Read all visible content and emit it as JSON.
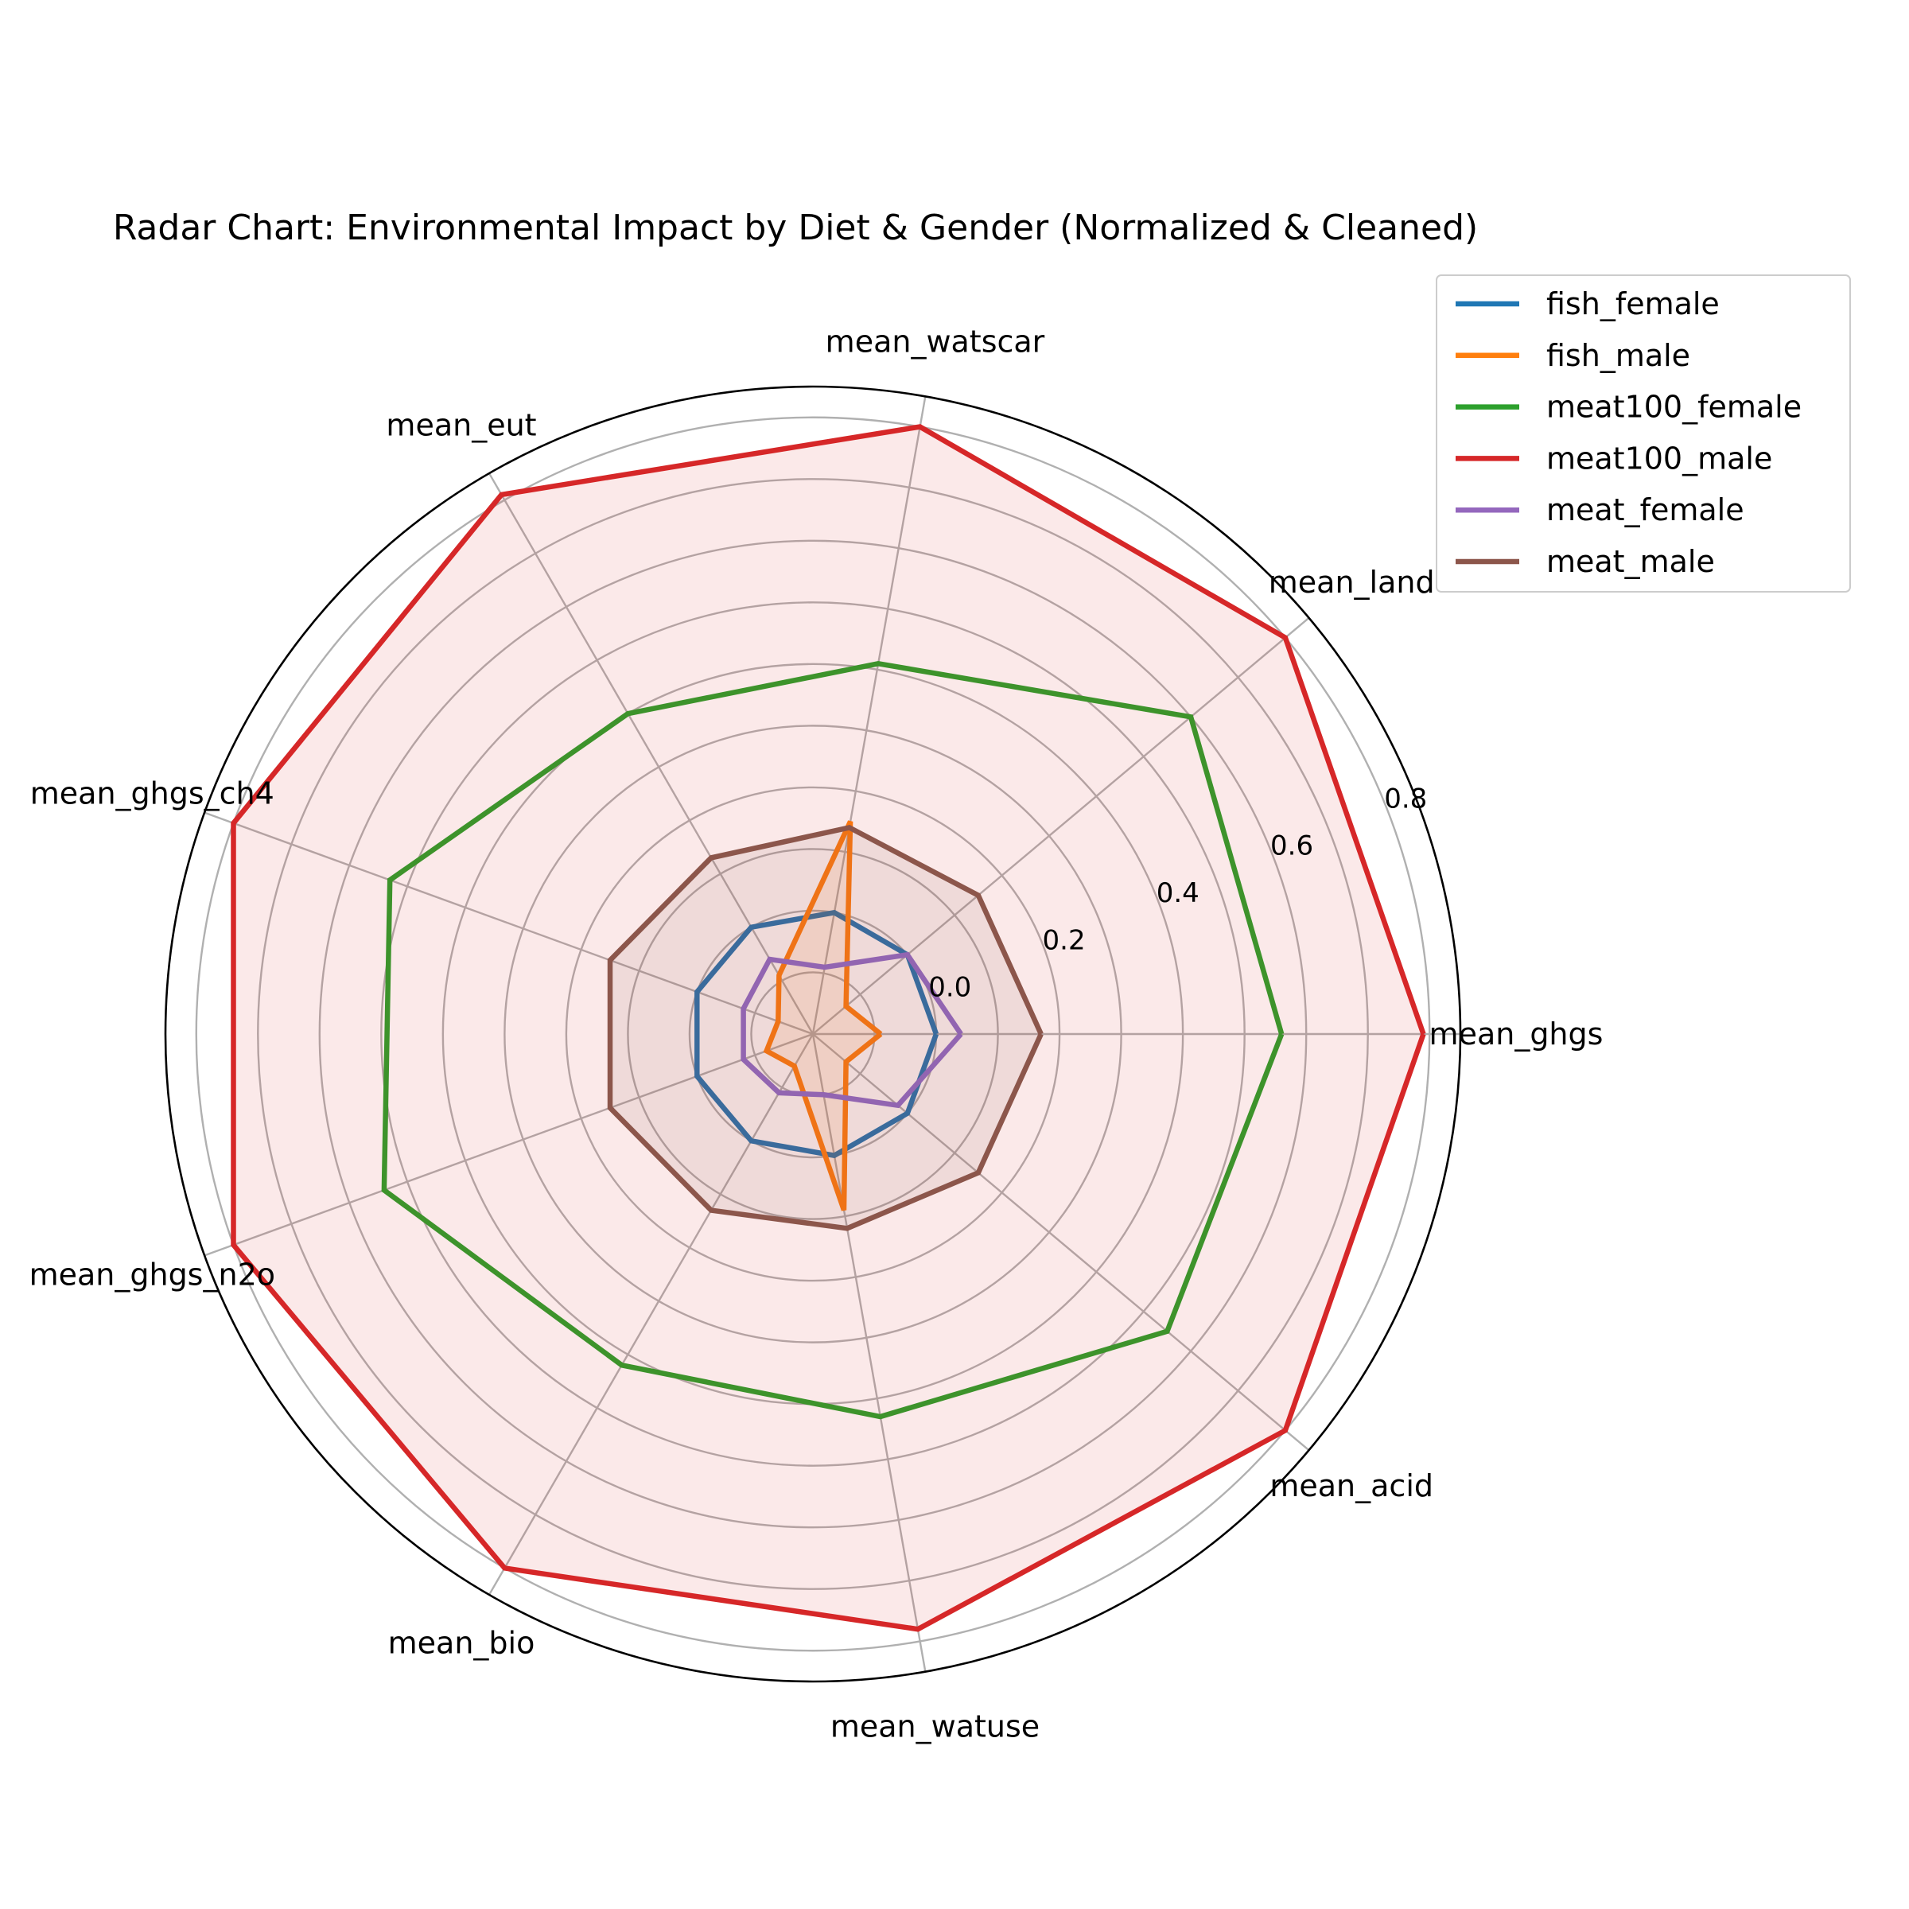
{
  "chart_data": {
    "type": "radar",
    "title": "Radar Chart: Environmental Impact by Diet & Gender (Normalized & Cleaned)",
    "categories": [
      "mean_ghgs",
      "mean_land",
      "mean_watscar",
      "mean_eut",
      "mean_ghgs_ch4",
      "mean_ghgs_n2o",
      "mean_bio",
      "mean_watuse",
      "mean_acid"
    ],
    "rticks": [
      "0.0",
      "0.2",
      "0.4",
      "0.6",
      "0.8"
    ],
    "rtick_values": [
      0.0,
      0.2,
      0.4,
      0.6,
      0.8
    ],
    "rlim": [
      -0.2,
      0.85
    ],
    "grid": true,
    "legend_position": "top-right",
    "series": [
      {
        "name": "fish_female",
        "color": "#1f77b4",
        "fill": false,
        "values": [
          0.0,
          0.0,
          0.0,
          0.0,
          0.0,
          0.0,
          0.0,
          0.0,
          0.0
        ]
      },
      {
        "name": "fish_male",
        "color": "#ff7f0e",
        "fill": true,
        "values": [
          -0.09,
          -0.13,
          0.15,
          -0.09,
          -0.14,
          -0.12,
          -0.14,
          0.09,
          -0.13
        ]
      },
      {
        "name": "meat100_female",
        "color": "#2ca02c",
        "fill": false,
        "values": [
          0.56,
          0.6,
          0.41,
          0.4,
          0.53,
          0.54,
          0.42,
          0.43,
          0.55
        ]
      },
      {
        "name": "meat100_male",
        "color": "#d62728",
        "fill": true,
        "values": [
          0.79,
          0.8,
          0.8,
          0.81,
          0.8,
          0.8,
          0.8,
          0.78,
          0.8
        ]
      },
      {
        "name": "meat_female",
        "color": "#9467bd",
        "fill": false,
        "values": [
          0.04,
          0.0,
          -0.09,
          -0.06,
          -0.08,
          -0.08,
          -0.09,
          -0.1,
          -0.02
        ]
      },
      {
        "name": "meat_male",
        "color": "#8c564b",
        "fill": true,
        "values": [
          0.17,
          0.15,
          0.14,
          0.13,
          0.15,
          0.15,
          0.13,
          0.12,
          0.15
        ]
      }
    ]
  }
}
